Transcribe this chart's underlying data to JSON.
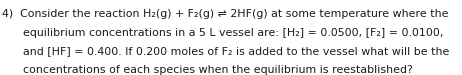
{
  "background_color": "#ffffff",
  "fontsize": 7.9,
  "font": "DejaVu Sans",
  "text_color": "#1a1a1a",
  "line1": "4)  Consider the reaction H₂(g) + F₂(g) ⇌ 2HF(g) at some temperature where the",
  "line2": "      equilibrium concentrations in a 5 L vessel are: [H₂] = 0.0500, [F₂] = 0.0100,",
  "line3": "      and [HF] = 0.400. If 0.200 moles of F₂ is added to the vessel what will be the",
  "line4": "      concentrations of each species when the equilibrium is reestablished?"
}
